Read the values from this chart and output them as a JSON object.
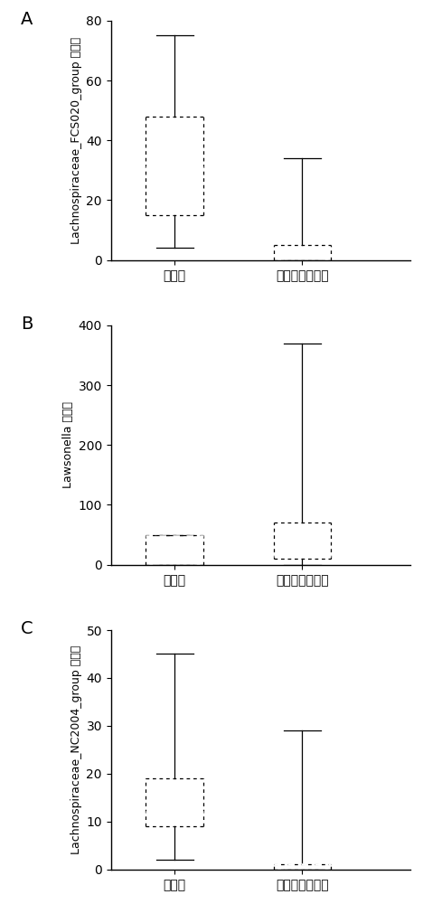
{
  "panels": [
    {
      "label": "A",
      "ylabel": "Lachnospiraceae_FCS020_group 的丰度",
      "ylim": [
        0,
        80
      ],
      "yticks": [
        0,
        20,
        40,
        60,
        80
      ],
      "groups": [
        {
          "name": "健康人",
          "whisker_low": 4,
          "q1": 15,
          "median": 31,
          "q3": 48,
          "whisker_high": 75,
          "pattern": "small_check"
        },
        {
          "name": "急性胰腊炎患者",
          "whisker_low": 0,
          "q1": 0,
          "median": 4,
          "q3": 5,
          "whisker_high": 34,
          "pattern": "large_check"
        }
      ]
    },
    {
      "label": "B",
      "ylabel": "Lawsonella 的丰度",
      "ylim": [
        0,
        400
      ],
      "yticks": [
        0,
        100,
        200,
        300,
        400
      ],
      "groups": [
        {
          "name": "健康人",
          "whisker_low": 0,
          "q1": 0,
          "median": 48,
          "q3": 50,
          "whisker_high": 50,
          "pattern": "none"
        },
        {
          "name": "急性胰腊炎患者",
          "whisker_low": 0,
          "q1": 10,
          "median": 15,
          "q3": 70,
          "whisker_high": 370,
          "pattern": "large_check"
        }
      ]
    },
    {
      "label": "C",
      "ylabel": "Lachnospiraceae_NC2004_group 的丰度",
      "ylim": [
        0,
        50
      ],
      "yticks": [
        0,
        10,
        20,
        30,
        40,
        50
      ],
      "groups": [
        {
          "name": "健康人",
          "whisker_low": 2,
          "q1": 9,
          "median": 12,
          "q3": 19,
          "whisker_high": 45,
          "pattern": "small_check"
        },
        {
          "name": "急性胰腊炎患者",
          "whisker_low": 0,
          "q1": 0,
          "median": 1,
          "q3": 1,
          "whisker_high": 29,
          "pattern": "large_check"
        }
      ]
    }
  ],
  "box_width": 0.45,
  "background_color": "#ffffff",
  "box_edge_color": "#000000",
  "whisker_color": "#000000",
  "median_color": "#ffffff",
  "cap_color": "#000000"
}
